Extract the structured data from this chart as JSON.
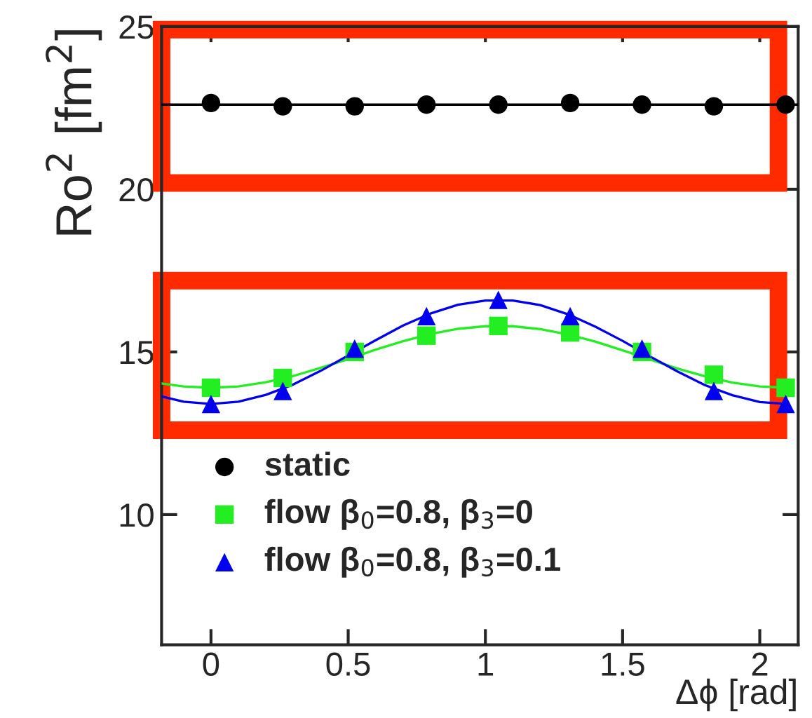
{
  "chart_data": {
    "type": "scatter",
    "xlabel": "Δϕ [rad]",
    "ylabel": "Ro$^{2}$ [fm$^{2}$]",
    "xlim": [
      -0.18,
      2.14
    ],
    "xticks": [
      0,
      0.5,
      1,
      1.5,
      2
    ],
    "ylim": [
      6,
      25
    ],
    "yticks": [
      10,
      15,
      20,
      25
    ],
    "legend": "bottom left",
    "grid": false,
    "x": [
      0,
      0.2618,
      0.5236,
      0.7854,
      1.0472,
      1.309,
      1.5708,
      1.8326,
      2.0944
    ],
    "series": [
      {
        "name": "static",
        "color": "#000000",
        "marker": "circle",
        "values": [
          22.65,
          22.55,
          22.55,
          22.6,
          22.6,
          22.65,
          22.6,
          22.55,
          22.6
        ]
      },
      {
        "name": "flow β$_{0}$=0.8, β$_{3}$=0",
        "color": "#22ee22",
        "marker": "square",
        "values": [
          13.9,
          14.2,
          15.0,
          15.5,
          15.8,
          15.6,
          15.0,
          14.3,
          13.9
        ]
      },
      {
        "name": "flow β$_{0}$=0.8, β$_{3}$=0.1",
        "color": "#0000ee",
        "marker": "triangle",
        "values": [
          13.4,
          13.8,
          15.1,
          16.1,
          16.6,
          16.1,
          15.1,
          13.8,
          13.4
        ]
      },
      {
        "type": "line",
        "color": "#000000",
        "x": [
          -0.18,
          0.3,
          0.8,
          1.3,
          1.8,
          2.14
        ],
        "values": [
          22.6,
          22.6,
          22.6,
          22.6,
          22.6,
          22.6
        ]
      },
      {
        "type": "line",
        "color": "#22ee22",
        "x": [
          -0.18,
          -0.1,
          0,
          0.1,
          0.2,
          0.3,
          0.4,
          0.5,
          0.6,
          0.7,
          0.8,
          0.9,
          1.0,
          1.1,
          1.2,
          1.3,
          1.4,
          1.5,
          1.6,
          1.7,
          1.8,
          1.9,
          2.0,
          2.1
        ],
        "values": [
          14.03,
          13.94,
          13.9,
          13.94,
          14.07,
          14.26,
          14.51,
          14.78,
          15.07,
          15.33,
          15.55,
          15.71,
          15.79,
          15.79,
          15.7,
          15.54,
          15.32,
          15.05,
          14.77,
          14.49,
          14.25,
          14.06,
          13.94,
          13.9
        ]
      },
      {
        "type": "line",
        "color": "#0000ee",
        "x": [
          -0.18,
          -0.1,
          0,
          0.1,
          0.2,
          0.3,
          0.4,
          0.5,
          0.6,
          0.7,
          0.8,
          0.9,
          1.0,
          1.1,
          1.2,
          1.3,
          1.4,
          1.5,
          1.6,
          1.7,
          1.8,
          1.9,
          2.0,
          2.1
        ],
        "values": [
          13.63,
          13.47,
          13.4,
          13.47,
          13.68,
          14.0,
          14.42,
          14.89,
          15.36,
          15.81,
          16.18,
          16.45,
          16.58,
          16.58,
          16.44,
          16.16,
          15.78,
          15.34,
          14.86,
          14.4,
          13.98,
          13.67,
          13.46,
          13.4
        ]
      }
    ]
  }
}
